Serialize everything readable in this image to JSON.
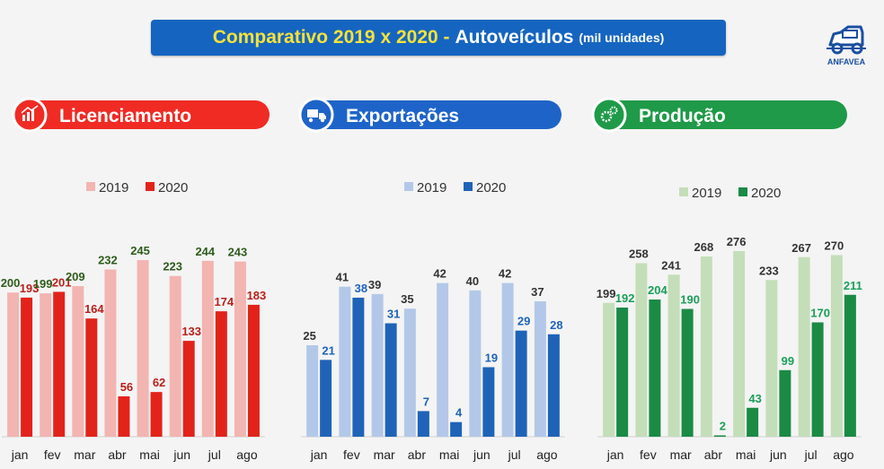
{
  "title": {
    "main": "Comparativo 2019 x 2020 -",
    "sub": "Autoveículos",
    "unit": "(mil unidades)"
  },
  "logo": {
    "text": "ANFAVEA",
    "icon": "car-logo-icon"
  },
  "colors": {
    "title_bg": "#1565c0",
    "title_accent": "#f5e23a"
  },
  "chart_data": [
    {
      "type": "bar",
      "title": "Licenciamento",
      "icon": "chart-icon",
      "categories": [
        "jan",
        "fev",
        "mar",
        "abr",
        "mai",
        "jun",
        "jul",
        "ago"
      ],
      "series": [
        {
          "name": "2019",
          "values": [
            200,
            199,
            209,
            232,
            245,
            223,
            244,
            243
          ]
        },
        {
          "name": "2020",
          "values": [
            193,
            201,
            164,
            56,
            62,
            133,
            174,
            183
          ]
        }
      ],
      "ylim": [
        0,
        260
      ],
      "legend": "top",
      "colors": {
        "header": "#ef2b24",
        "s2019": "#f2b5b1",
        "s2020": "#e2231a",
        "label2019": "#2e5d1c",
        "label2020": "#b8201a"
      }
    },
    {
      "type": "bar",
      "title": "Exportações",
      "icon": "truck-icon",
      "categories": [
        "jan",
        "fev",
        "mar",
        "abr",
        "mai",
        "jun",
        "jul",
        "ago"
      ],
      "series": [
        {
          "name": "2019",
          "values": [
            25,
            41,
            39,
            35,
            42,
            40,
            42,
            37
          ]
        },
        {
          "name": "2020",
          "values": [
            21,
            38,
            31,
            7,
            4,
            19,
            29,
            28
          ]
        }
      ],
      "ylim": [
        0,
        50
      ],
      "legend": "top",
      "colors": {
        "header": "#1e64c8",
        "s2019": "#b3c8e8",
        "s2020": "#1f63b8",
        "label2019": "#333333",
        "label2020": "#1f63b8"
      }
    },
    {
      "type": "bar",
      "title": "Produção",
      "icon": "gears-icon",
      "categories": [
        "jan",
        "fev",
        "mar",
        "abr",
        "mai",
        "jun",
        "jul",
        "ago"
      ],
      "series": [
        {
          "name": "2019",
          "values": [
            199,
            258,
            241,
            268,
            276,
            233,
            267,
            270
          ]
        },
        {
          "name": "2020",
          "values": [
            192,
            204,
            190,
            2,
            43,
            99,
            170,
            211
          ]
        }
      ],
      "ylim": [
        0,
        300
      ],
      "legend": "top",
      "colors": {
        "header": "#1f9a48",
        "s2019": "#c4deb9",
        "s2020": "#1b8a45",
        "label2019": "#333333",
        "label2020": "#1b9e5a"
      }
    }
  ]
}
